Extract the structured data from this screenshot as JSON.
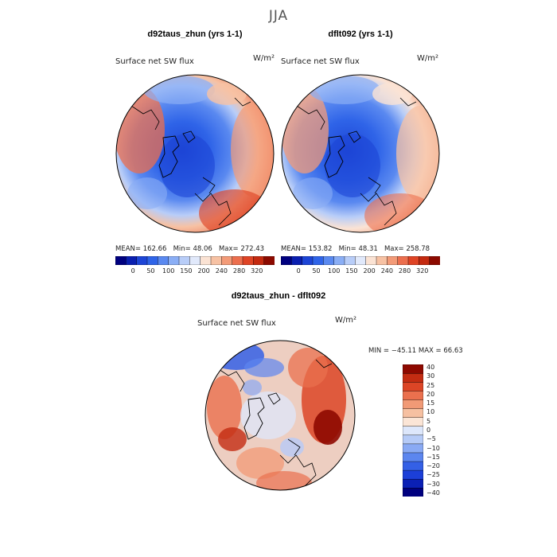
{
  "season": "JJA",
  "panels": [
    {
      "title": "d92taus_zhun (yrs 1-1)",
      "variable": "Surface net SW flux",
      "units": "W/m²",
      "mean_label": "MEAN=",
      "mean": "162.66",
      "min_label": "Min=",
      "min": "48.06",
      "max_label": "Max=",
      "max": "272.43"
    },
    {
      "title": "dflt092 (yrs 1-1)",
      "variable": "Surface net SW flux",
      "units": "W/m²",
      "mean_label": "MEAN=",
      "mean": "153.82",
      "min_label": "Min=",
      "min": "48.31",
      "max_label": "Max=",
      "max": "258.78"
    }
  ],
  "abs_colorbar": {
    "colors": [
      "#00007f",
      "#0a1fb0",
      "#1d45d6",
      "#2f64e8",
      "#5a89f0",
      "#8aaef5",
      "#b8cdf8",
      "#e1e9fb",
      "#fbe3d4",
      "#f7c2a4",
      "#f39b78",
      "#ec6f4e",
      "#df4425",
      "#c42a10",
      "#8c0a00"
    ],
    "labels": [
      "0",
      "50",
      "100",
      "150",
      "200",
      "240",
      "280",
      "320"
    ]
  },
  "diff_panel": {
    "title": "d92taus_zhun - dflt092",
    "variable": "Surface net SW flux",
    "units": "W/m²",
    "minmax": "MIN = −45.11 MAX =  66.63"
  },
  "diff_colorbar": {
    "colors": [
      "#00007f",
      "#0b20b5",
      "#1c3fd8",
      "#3460e6",
      "#5c86ef",
      "#8aaaf4",
      "#b6cbf7",
      "#dde7fb",
      "#fbe5d6",
      "#f6c0a1",
      "#f19a76",
      "#ea704e",
      "#dc4526",
      "#c32c12",
      "#8e0900"
    ],
    "labels": [
      "40",
      "30",
      "25",
      "20",
      "15",
      "10",
      "5",
      "0",
      "−5",
      "−10",
      "−15",
      "−20",
      "−25",
      "−30",
      "−40"
    ]
  }
}
